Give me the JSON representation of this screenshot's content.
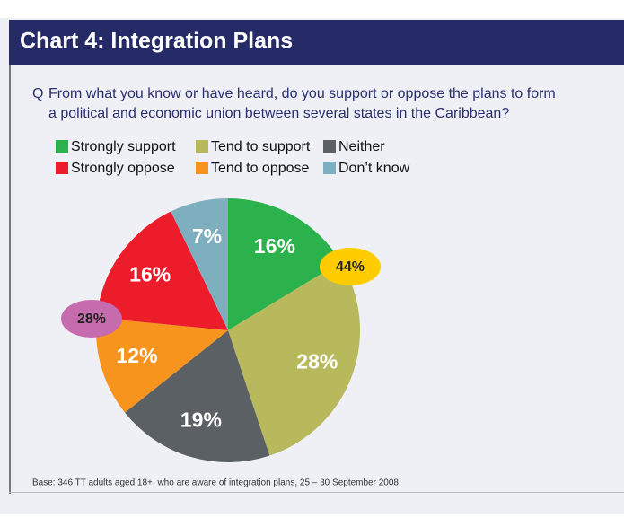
{
  "chart_data": {
    "type": "pie",
    "title": "Chart 4: Integration Plans",
    "question_prefix": "Q",
    "question": [
      "From what you know or have heard, do you support or oppose the plans to form",
      "a political and economic union between several states in the Caribbean?"
    ],
    "categories": [
      "Strongly support",
      "Tend to support",
      "Neither",
      "Tend to oppose",
      "Strongly oppose",
      "Don’t know"
    ],
    "values": [
      16,
      28,
      19,
      12,
      16,
      7
    ],
    "value_labels": [
      "16%",
      "28%",
      "19%",
      "12%",
      "16%",
      "7%"
    ],
    "colors": [
      "#2bb24c",
      "#b8b85c",
      "#5b6064",
      "#f7941d",
      "#ec1c2a",
      "#7eafbf"
    ],
    "legend_order": [
      0,
      1,
      2,
      4,
      3,
      5
    ],
    "annotations": [
      {
        "text": "44%",
        "color": "#ffcc00"
      },
      {
        "text": "28%",
        "color": "#c66bae"
      }
    ],
    "footnote": "Base: 346 TT adults aged 18+, who are aware of integration plans, 25 – 30 September 2008"
  }
}
